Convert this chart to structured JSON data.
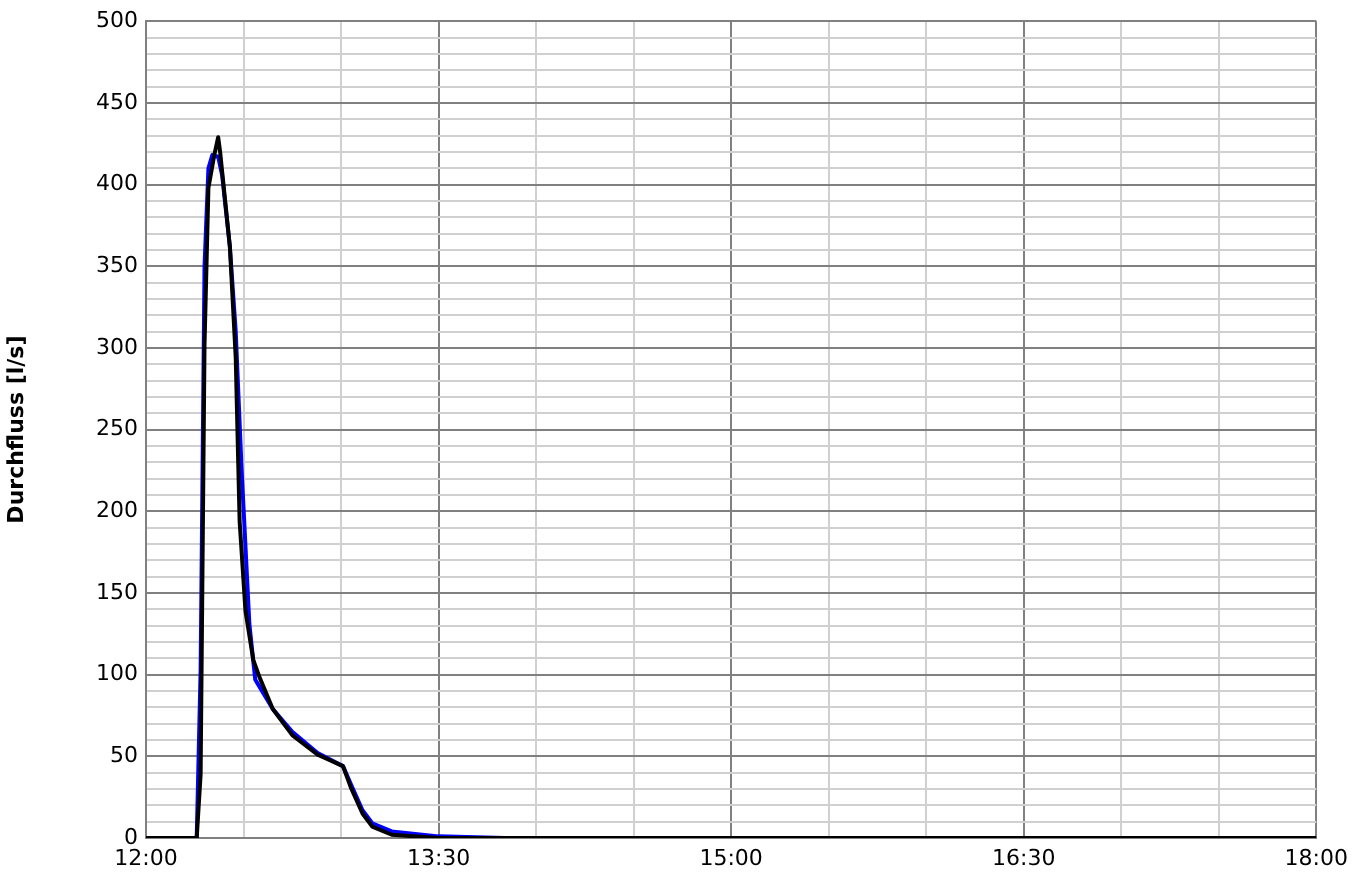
{
  "chart_data": {
    "type": "line",
    "ylabel": "Durchfluss [l/s]",
    "xlim": [
      12,
      18
    ],
    "xticks": [
      {
        "value": 12,
        "label": "12:00"
      },
      {
        "value": 12.5,
        "label": null
      },
      {
        "value": 13,
        "label": null
      },
      {
        "value": 13.5,
        "label": "13:30"
      },
      {
        "value": 14,
        "label": null
      },
      {
        "value": 14.5,
        "label": null
      },
      {
        "value": 15,
        "label": "15:00"
      },
      {
        "value": 15.5,
        "label": null
      },
      {
        "value": 16,
        "label": null
      },
      {
        "value": 16.5,
        "label": "16:30"
      },
      {
        "value": 17,
        "label": null
      },
      {
        "value": 17.5,
        "label": null
      },
      {
        "value": 18,
        "label": "18:00"
      }
    ],
    "ylim": [
      0,
      500
    ],
    "yticks": [
      0,
      {
        "value": 10,
        "label": null
      },
      {
        "value": 20,
        "label": null
      },
      {
        "value": 30,
        "label": null
      },
      {
        "value": 40,
        "label": null
      },
      50,
      {
        "value": 60,
        "label": null
      },
      {
        "value": 70,
        "label": null
      },
      {
        "value": 80,
        "label": null
      },
      {
        "value": 90,
        "label": null
      },
      100,
      {
        "value": 110,
        "label": null
      },
      {
        "value": 120,
        "label": null
      },
      {
        "value": 130,
        "label": null
      },
      {
        "value": 140,
        "label": null
      },
      150,
      {
        "value": 160,
        "label": null
      },
      {
        "value": 170,
        "label": null
      },
      {
        "value": 180,
        "label": null
      },
      {
        "value": 190,
        "label": null
      },
      200,
      {
        "value": 210,
        "label": null
      },
      {
        "value": 220,
        "label": null
      },
      {
        "value": 230,
        "label": null
      },
      {
        "value": 240,
        "label": null
      },
      250,
      {
        "value": 260,
        "label": null
      },
      {
        "value": 270,
        "label": null
      },
      {
        "value": 280,
        "label": null
      },
      {
        "value": 290,
        "label": null
      },
      300,
      {
        "value": 310,
        "label": null
      },
      {
        "value": 320,
        "label": null
      },
      {
        "value": 330,
        "label": null
      },
      {
        "value": 340,
        "label": null
      },
      350,
      {
        "value": 360,
        "label": null
      },
      {
        "value": 370,
        "label": null
      },
      {
        "value": 380,
        "label": null
      },
      {
        "value": 390,
        "label": null
      },
      400,
      {
        "value": 410,
        "label": null
      },
      {
        "value": 420,
        "label": null
      },
      {
        "value": 430,
        "label": null
      },
      {
        "value": 440,
        "label": null
      },
      450,
      {
        "value": 460,
        "label": null
      },
      {
        "value": 470,
        "label": null
      },
      {
        "value": 480,
        "label": null
      },
      {
        "value": 490,
        "label": null
      },
      500
    ],
    "grid": true,
    "marker": "none",
    "line_style": "solid",
    "series": [
      {
        "color": "#000000",
        "x": [
          12,
          12.26,
          12.28,
          12.3,
          12.32,
          12.35,
          12.37,
          12.38,
          12.43,
          12.46,
          12.48,
          12.51,
          12.55,
          12.58,
          12.65,
          12.75,
          12.88,
          13.01,
          13.05,
          13.11,
          13.16,
          13.26,
          13.5,
          18
        ],
        "values": [
          0,
          0,
          39,
          302,
          398,
          418,
          429,
          420,
          362,
          294,
          194,
          139,
          109,
          99,
          79,
          63,
          51,
          44,
          31,
          15,
          7,
          2,
          0,
          0
        ]
      },
      {
        "color": "#0000ff",
        "x": [
          12,
          12.26,
          12.28,
          12.3,
          12.32,
          12.34,
          12.37,
          12.39,
          12.43,
          12.46,
          12.49,
          12.53,
          12.56,
          12.65,
          12.75,
          12.88,
          13.01,
          13.05,
          13.11,
          13.16,
          13.26,
          13.5,
          13.84,
          18
        ],
        "values": [
          0,
          0,
          103,
          350,
          410,
          418,
          417,
          406,
          362,
          310,
          226,
          131,
          97,
          79,
          65,
          52,
          44,
          33,
          17,
          9,
          4,
          1,
          0,
          0
        ]
      }
    ]
  }
}
